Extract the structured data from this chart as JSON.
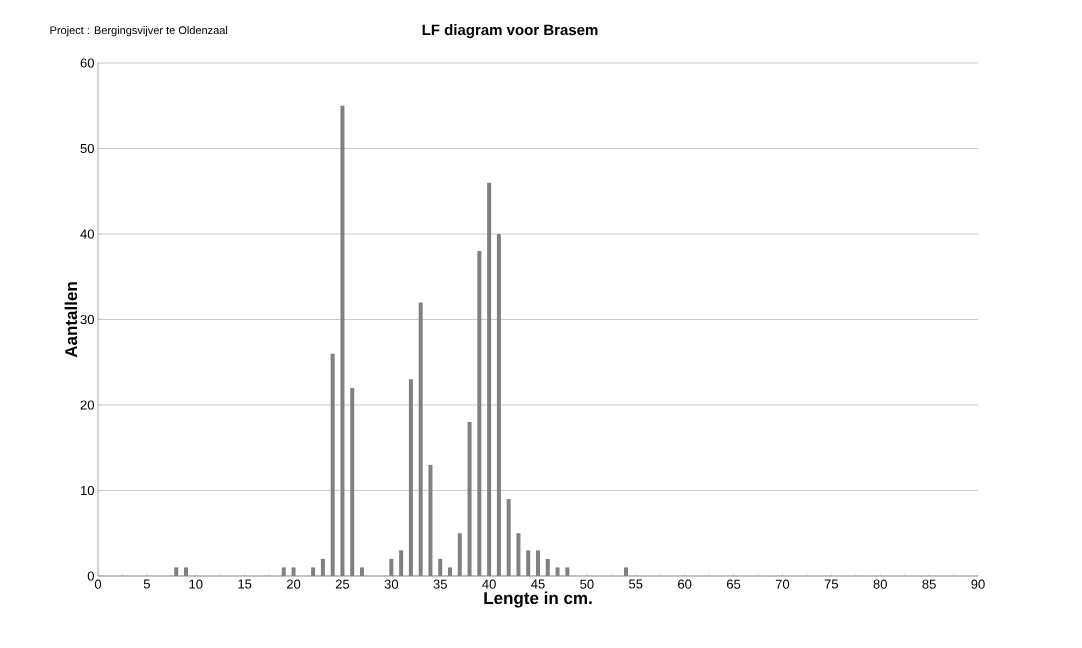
{
  "chart_data": {
    "type": "bar",
    "title": "LF diagram voor Brasem",
    "annotations": [
      "Project    : Bergingsvijver te Oldenzaal"
    ],
    "xlabel": "Lengte in cm.",
    "ylabel": "Aantallen",
    "x": [
      8,
      9,
      19,
      20,
      22,
      23,
      24,
      25,
      26,
      27,
      30,
      31,
      32,
      33,
      34,
      35,
      36,
      37,
      38,
      39,
      40,
      41,
      42,
      43,
      44,
      45,
      46,
      47,
      48,
      54
    ],
    "values": [
      1,
      1,
      1,
      1,
      1,
      2,
      26,
      55,
      22,
      1,
      2,
      3,
      23,
      32,
      13,
      2,
      1,
      5,
      18,
      38,
      46,
      40,
      9,
      5,
      3,
      3,
      2,
      1,
      1,
      1
    ],
    "color": "#808080",
    "xlim": [
      0,
      90
    ],
    "xticks": [
      0,
      5,
      10,
      15,
      20,
      25,
      30,
      35,
      40,
      45,
      50,
      55,
      60,
      65,
      70,
      75,
      80,
      85,
      90
    ],
    "ylim": [
      0,
      60
    ],
    "yticks": [
      0,
      10,
      20,
      30,
      40,
      50,
      60
    ],
    "grid": "y"
  }
}
